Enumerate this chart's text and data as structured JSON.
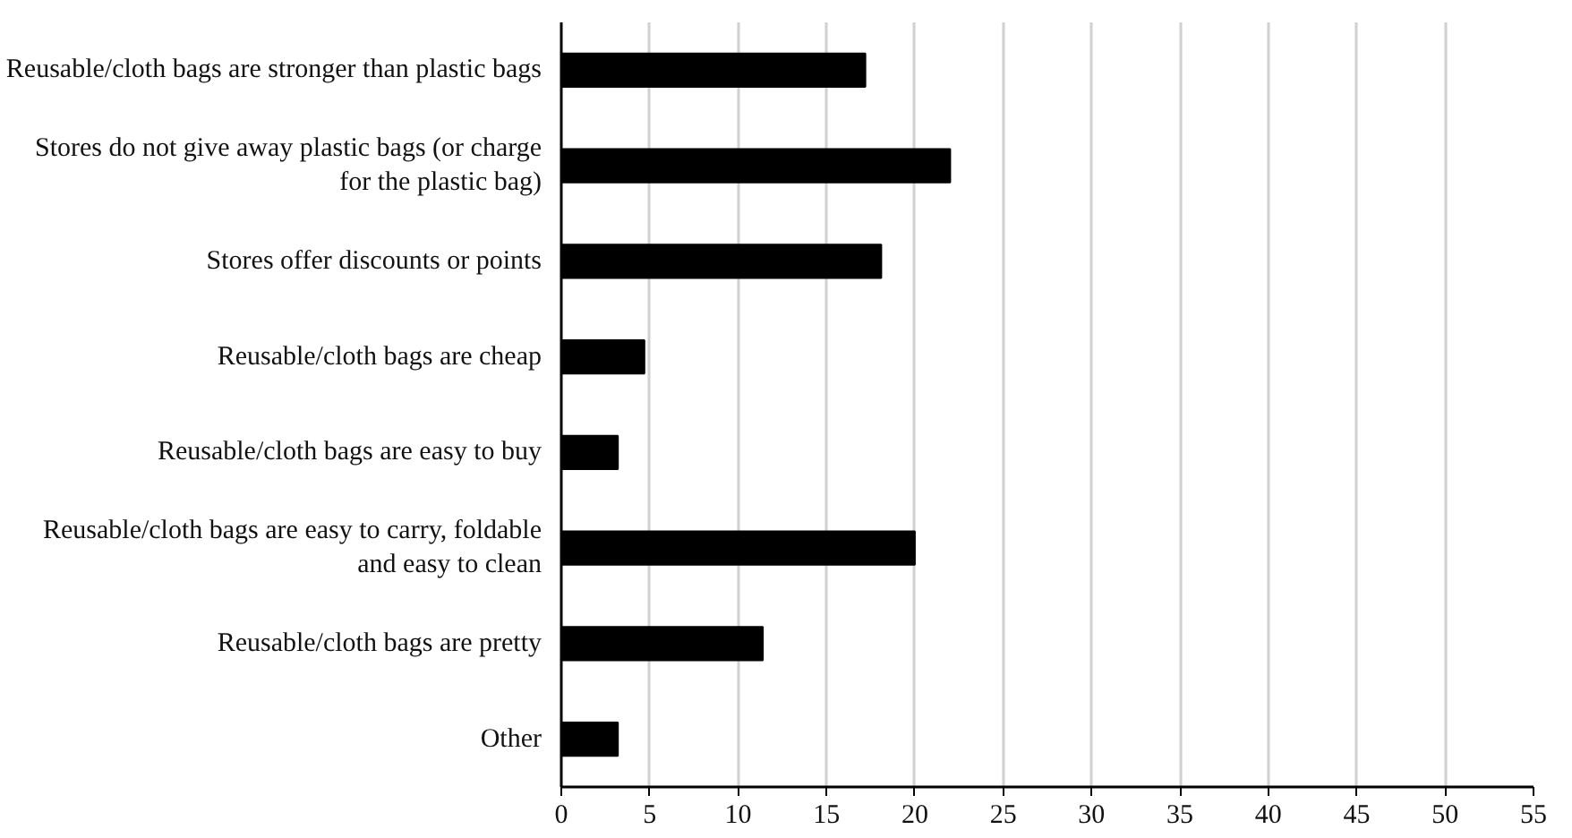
{
  "chart_data": {
    "type": "bar",
    "orientation": "horizontal",
    "categories": [
      "Reusable/cloth bags are stronger than plastic bags",
      "Stores do not give away plastic bags (or charge for the plastic bag)",
      "Stores offer discounts or points",
      "Reusable/cloth bags are cheap",
      "Reusable/cloth bags are easy to buy",
      "Reusable/cloth bags are easy to carry, foldable and easy to clean",
      "Reusable/cloth bags are pretty",
      "Other"
    ],
    "values": [
      17.2,
      22.0,
      18.1,
      4.7,
      3.2,
      20.0,
      11.4,
      3.2
    ],
    "color": "#000000",
    "xlim": [
      0,
      55
    ],
    "xticks": [
      0,
      5,
      10,
      15,
      20,
      25,
      30,
      35,
      40,
      45,
      50,
      55
    ],
    "grid": "x"
  }
}
